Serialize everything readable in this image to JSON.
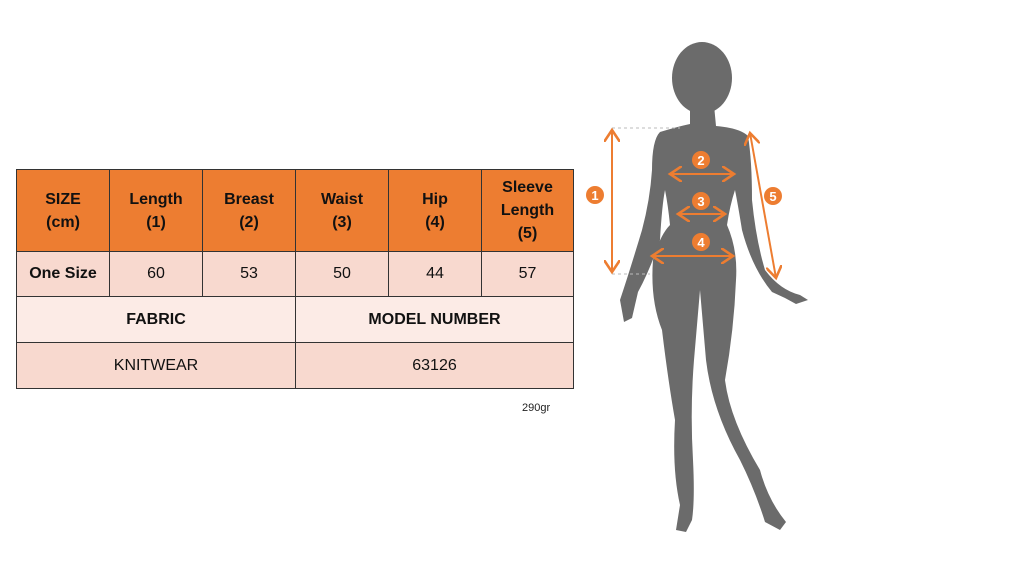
{
  "size_table": {
    "headers": [
      "SIZE\n(cm)",
      "Length\n(1)",
      "Breast\n(2)",
      "Waist\n(3)",
      "Hip\n(4)",
      "Sleeve\nLength\n(5)"
    ],
    "row": [
      "One Size",
      "60",
      "53",
      "50",
      "44",
      "57"
    ],
    "fabric_label": "FABRIC",
    "model_number_label": "MODEL NUMBER",
    "fabric_value": "KNITWEAR",
    "model_number_value": "63126"
  },
  "weight": "290gr",
  "diagram": {
    "markers": [
      "1",
      "2",
      "3",
      "4",
      "5"
    ],
    "colors": {
      "accent": "#ed7d31",
      "silhouette": "#6b6b6b",
      "pale": "#f8d9cf"
    }
  }
}
